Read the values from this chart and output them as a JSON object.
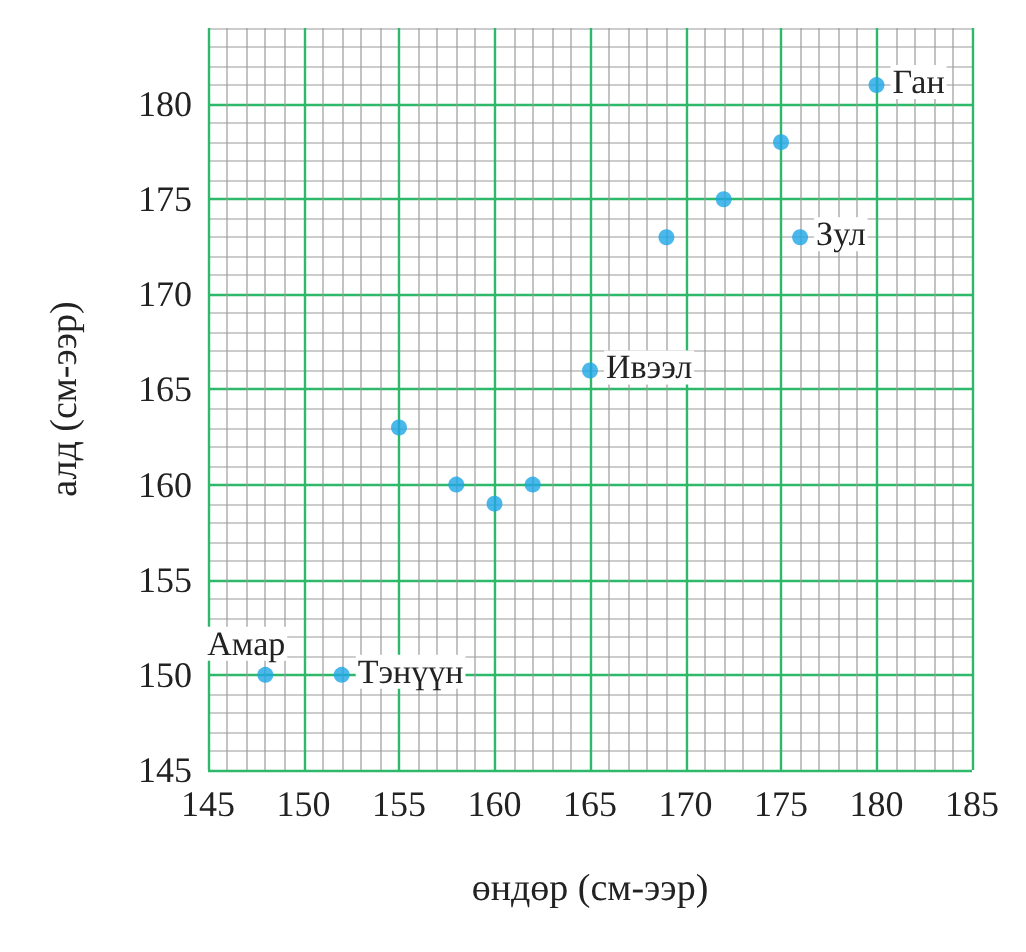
{
  "chart_data": {
    "type": "scatter",
    "xlabel": "өндөр (см-ээр)",
    "ylabel": "алд (см-ээр)",
    "x": [
      148,
      152,
      155,
      158,
      160,
      162,
      165,
      169,
      172,
      175,
      176,
      180
    ],
    "values": [
      150,
      150,
      163,
      160,
      159,
      160,
      166,
      173,
      175,
      178,
      173,
      181
    ],
    "color": "#1ea6e6",
    "marker": "circle",
    "grid": true,
    "xlim": [
      145,
      185
    ],
    "xticks": [
      145,
      150,
      155,
      160,
      165,
      170,
      175,
      180,
      185
    ],
    "ylim": [
      145,
      184
    ],
    "yticks": [
      145,
      150,
      155,
      160,
      165,
      170,
      175,
      180
    ],
    "annotations": [
      {
        "text": "Амар",
        "x": 148,
        "y": 150
      },
      {
        "text": "Тэнүүн",
        "x": 152,
        "y": 150
      },
      {
        "text": "Ивээл",
        "x": 165,
        "y": 166
      },
      {
        "text": "Зул",
        "x": 176,
        "y": 173
      },
      {
        "text": "Ган",
        "x": 180,
        "y": 181
      }
    ]
  }
}
